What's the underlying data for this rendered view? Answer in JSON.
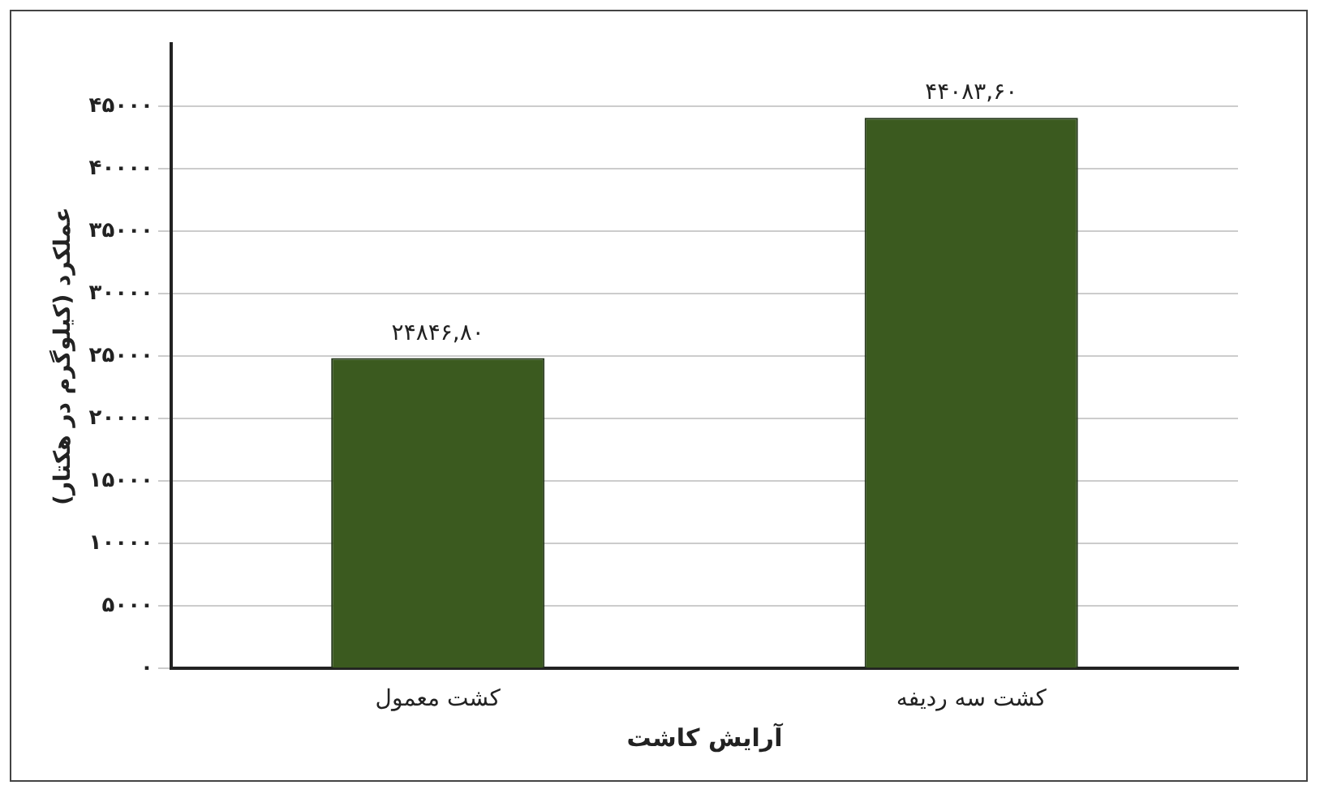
{
  "chart_data": {
    "type": "bar",
    "xlabel": "آرایش کاشت",
    "ylabel": "عملکرد (کیلوگرم در هکتار)",
    "categories": [
      "کشت معمول",
      "کشت سه ردیفه"
    ],
    "values": [
      24846.8,
      44083.6
    ],
    "value_labels": [
      "۲۴۸۴۶,۸۰",
      "۴۴۰۸۳,۶۰"
    ],
    "color": "#3b5a1f",
    "ylim": [
      0,
      50000
    ],
    "yticks": [
      {
        "value": 0,
        "label": "۰"
      },
      {
        "value": 5000,
        "label": "۵۰۰۰"
      },
      {
        "value": 10000,
        "label": "۱۰۰۰۰"
      },
      {
        "value": 15000,
        "label": "۱۵۰۰۰"
      },
      {
        "value": 20000,
        "label": "۲۰۰۰۰"
      },
      {
        "value": 25000,
        "label": "۲۵۰۰۰"
      },
      {
        "value": 30000,
        "label": "۳۰۰۰۰"
      },
      {
        "value": 35000,
        "label": "۳۵۰۰۰"
      },
      {
        "value": 40000,
        "label": "۴۰۰۰۰"
      },
      {
        "value": 45000,
        "label": "۴۵۰۰۰"
      }
    ],
    "grid": "y"
  }
}
